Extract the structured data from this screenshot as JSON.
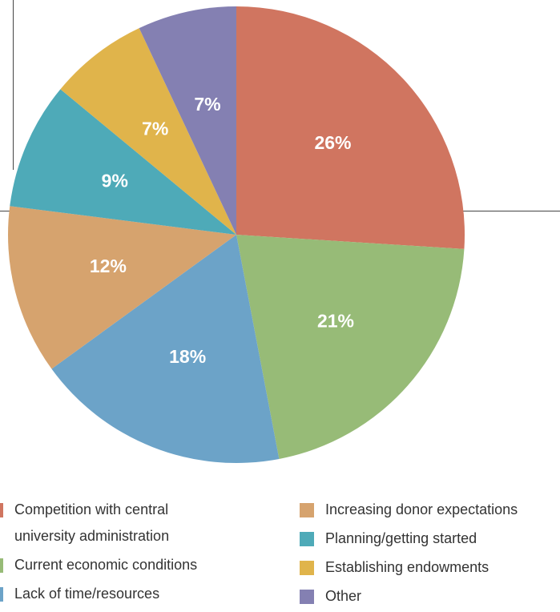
{
  "chart_data": {
    "type": "pie",
    "categories": [
      "Competition with central university administration",
      "Current economic conditions",
      "Lack of time/resources",
      "Increasing donor expectations",
      "Planning/getting started",
      "Establishing endowments",
      "Other"
    ],
    "values": [
      26,
      21,
      18,
      12,
      9,
      7,
      7
    ],
    "value_labels": [
      "26%",
      "21%",
      "18%",
      "12%",
      "9%",
      "7%",
      "7%"
    ],
    "colors": [
      "#d07560",
      "#97bb77",
      "#6ca3c8",
      "#d6a36e",
      "#4eaab8",
      "#e0b44b",
      "#8480b2"
    ]
  }
}
